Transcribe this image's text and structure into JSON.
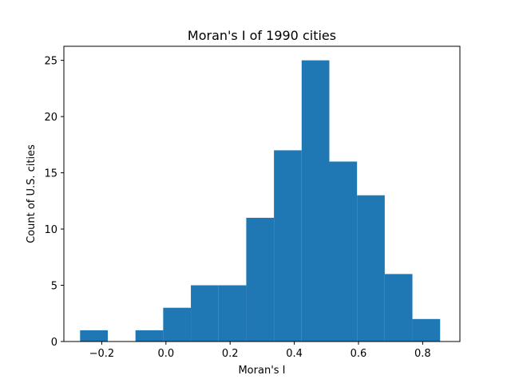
{
  "chart_data": {
    "type": "bar",
    "title": "Moran's I of 1990 cities",
    "xlabel": "Moran's I",
    "ylabel": "Count of U.S. cities",
    "xlim": [
      -0.318,
      0.916
    ],
    "ylim": [
      0,
      26.25
    ],
    "x_ticks": [
      -0.2,
      0.0,
      0.2,
      0.4,
      0.6,
      0.8
    ],
    "x_tick_labels": [
      "−0.2",
      "0.0",
      "0.2",
      "0.4",
      "0.6",
      "0.8"
    ],
    "y_ticks": [
      0,
      5,
      10,
      15,
      20,
      25
    ],
    "y_tick_labels": [
      "0",
      "5",
      "10",
      "15",
      "20",
      "25"
    ],
    "grid": false,
    "legend": "none",
    "bar_color": "#1f77b4",
    "bins": [
      {
        "x0": -0.2675,
        "x1": -0.1812,
        "count": 1
      },
      {
        "x0": -0.1812,
        "x1": -0.0949,
        "count": 0
      },
      {
        "x0": -0.0949,
        "x1": -0.0086,
        "count": 1
      },
      {
        "x0": -0.0086,
        "x1": 0.0777,
        "count": 3
      },
      {
        "x0": 0.0777,
        "x1": 0.164,
        "count": 5
      },
      {
        "x0": 0.164,
        "x1": 0.2503,
        "count": 5
      },
      {
        "x0": 0.2503,
        "x1": 0.3366,
        "count": 11
      },
      {
        "x0": 0.3366,
        "x1": 0.4229,
        "count": 17
      },
      {
        "x0": 0.4229,
        "x1": 0.5092,
        "count": 25
      },
      {
        "x0": 0.5092,
        "x1": 0.5955,
        "count": 16
      },
      {
        "x0": 0.5955,
        "x1": 0.6818,
        "count": 13
      },
      {
        "x0": 0.6818,
        "x1": 0.7681,
        "count": 6
      },
      {
        "x0": 0.7681,
        "x1": 0.8544,
        "count": 2
      }
    ]
  }
}
